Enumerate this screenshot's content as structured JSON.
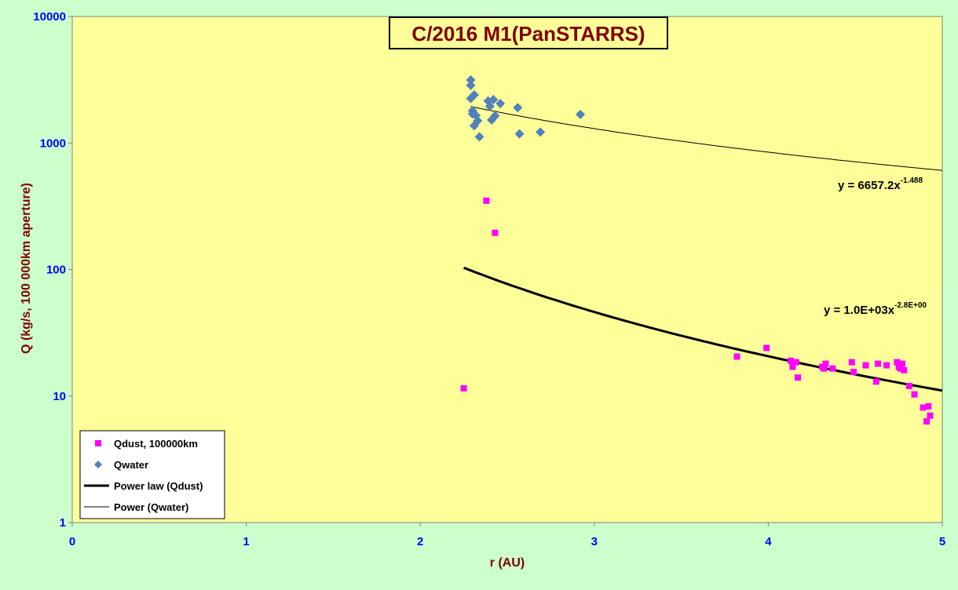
{
  "chart_data": {
    "type": "scatter",
    "title": "C/2016 M1(PanSTARRS)",
    "xlabel": "r (AU)",
    "ylabel": "Q (kg/s, 100 000km aperture)",
    "xlim": [
      0,
      5
    ],
    "ylim": [
      1,
      10000
    ],
    "yscale": "log",
    "x_ticks": [
      "0",
      "1",
      "2",
      "3",
      "4",
      "5"
    ],
    "y_ticks": [
      "1",
      "10",
      "100",
      "1000",
      "10000"
    ],
    "grid": false,
    "legend_position": "bottom-left",
    "series": [
      {
        "name": "Qdust, 100000km",
        "marker": "square",
        "color": "#ff00ff",
        "points": [
          [
            2.25,
            11.5
          ],
          [
            2.38,
            350
          ],
          [
            2.43,
            195
          ],
          [
            3.82,
            20.5
          ],
          [
            3.99,
            24
          ],
          [
            4.13,
            19
          ],
          [
            4.14,
            17
          ],
          [
            4.16,
            18.5
          ],
          [
            4.17,
            14
          ],
          [
            4.31,
            17
          ],
          [
            4.32,
            16.5
          ],
          [
            4.33,
            18
          ],
          [
            4.37,
            16.5
          ],
          [
            4.48,
            18.5
          ],
          [
            4.49,
            15.5
          ],
          [
            4.56,
            17.5
          ],
          [
            4.62,
            13
          ],
          [
            4.63,
            18
          ],
          [
            4.68,
            17.5
          ],
          [
            4.74,
            18.5
          ],
          [
            4.75,
            17
          ],
          [
            4.76,
            16.5
          ],
          [
            4.77,
            18
          ],
          [
            4.78,
            16
          ],
          [
            4.81,
            12
          ],
          [
            4.84,
            10.3
          ],
          [
            4.89,
            8.1
          ],
          [
            4.91,
            6.3
          ],
          [
            4.92,
            8.3
          ],
          [
            4.93,
            7
          ]
        ]
      },
      {
        "name": "Qwater",
        "marker": "diamond",
        "color": "#4f81bd",
        "points": [
          [
            2.29,
            3150
          ],
          [
            2.29,
            2850
          ],
          [
            2.29,
            2250
          ],
          [
            2.3,
            1800
          ],
          [
            2.3,
            1700
          ],
          [
            2.31,
            2400
          ],
          [
            2.32,
            1650
          ],
          [
            2.31,
            1370
          ],
          [
            2.33,
            1500
          ],
          [
            2.34,
            1120
          ],
          [
            2.39,
            2150
          ],
          [
            2.4,
            1950
          ],
          [
            2.41,
            1520
          ],
          [
            2.42,
            2200
          ],
          [
            2.43,
            1640
          ],
          [
            2.46,
            2050
          ],
          [
            2.56,
            1900
          ],
          [
            2.57,
            1180
          ],
          [
            2.69,
            1220
          ],
          [
            2.92,
            1680
          ]
        ]
      },
      {
        "name": "Power law (Qdust)",
        "type": "line",
        "color": "#000000",
        "equation": "y = 1.0E+03x",
        "exponent_label": "-2.8E+00",
        "coefficient": 1000,
        "exponent": -2.8,
        "x_range": [
          2.25,
          5
        ]
      },
      {
        "name": "Power (Qwater)",
        "type": "line",
        "color": "#000000",
        "equation": "y = 6657.2x",
        "exponent_label": "-1.488",
        "coefficient": 6657.2,
        "exponent": -1.488,
        "x_range": [
          2.29,
          5
        ]
      }
    ]
  }
}
